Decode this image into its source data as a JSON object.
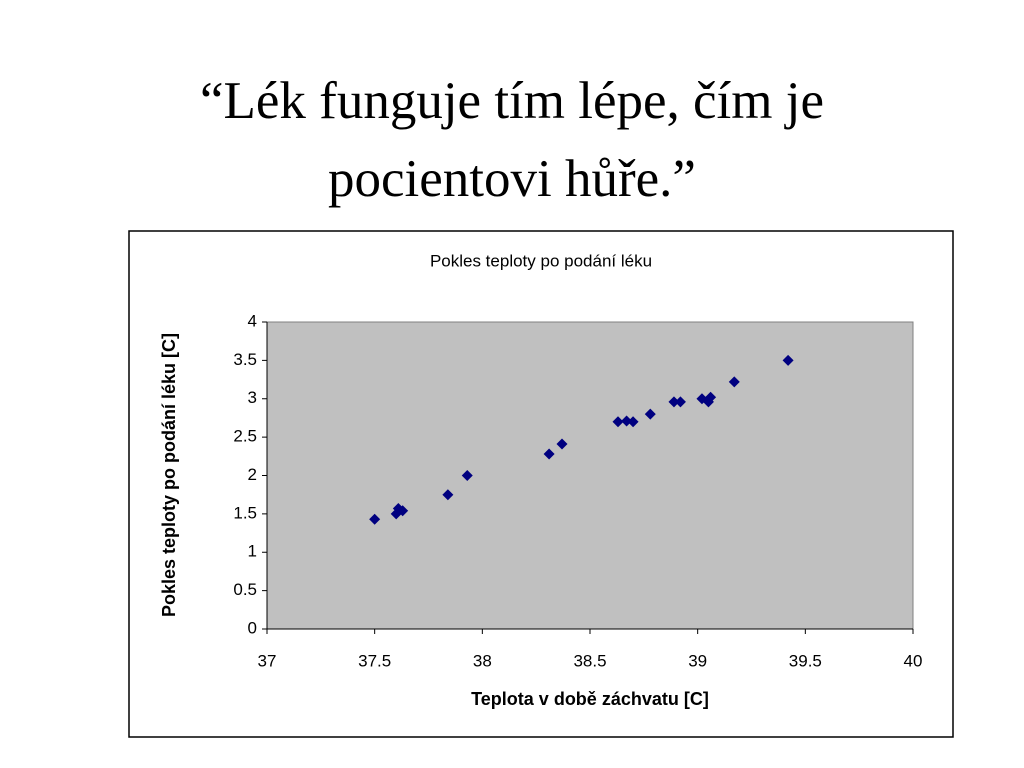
{
  "heading": "“Lék funguje tím lépe, čím je pocientovi hůře.”",
  "chart_data": {
    "type": "scatter",
    "title": "Pokles teploty po podání léku",
    "xlabel": "Teplota v době záchvatu [C]",
    "ylabel": "Pokles teploty po podání léku [C]",
    "x": [
      37.5,
      37.6,
      37.61,
      37.63,
      37.84,
      37.93,
      38.31,
      38.37,
      38.63,
      38.67,
      38.7,
      38.78,
      38.89,
      38.92,
      39.02,
      39.05,
      39.06,
      39.17,
      39.42
    ],
    "y": [
      1.43,
      1.5,
      1.57,
      1.54,
      1.75,
      2.0,
      2.28,
      2.41,
      2.7,
      2.71,
      2.7,
      2.8,
      2.96,
      2.96,
      3.0,
      2.96,
      3.02,
      3.22,
      3.5
    ],
    "color": "#000080",
    "xlim": [
      37,
      40
    ],
    "xticks": [
      37,
      37.5,
      38,
      38.5,
      39,
      39.5,
      40
    ],
    "ylim": [
      0,
      4
    ],
    "yticks": [
      0,
      0.5,
      1,
      1.5,
      2,
      2.5,
      3,
      3.5,
      4
    ],
    "grid": false,
    "plot_background": "#c0c0c0"
  }
}
